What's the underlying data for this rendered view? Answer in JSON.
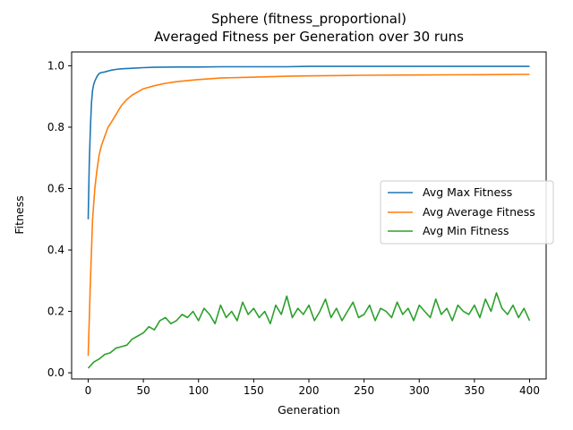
{
  "chart_data": {
    "type": "line",
    "title_line1": "Sphere (fitness_proportional)",
    "title_line2": "Averaged Fitness per Generation over 30 runs",
    "xlabel": "Generation",
    "ylabel": "Fitness",
    "xlim": [
      -15,
      415
    ],
    "ylim": [
      -0.02,
      1.045
    ],
    "xticks": [
      0,
      50,
      100,
      150,
      200,
      250,
      300,
      350,
      400
    ],
    "yticks": [
      0.0,
      0.2,
      0.4,
      0.6,
      0.8,
      1.0
    ],
    "ytick_labels": [
      "0.0",
      "0.2",
      "0.4",
      "0.6",
      "0.8",
      "1.0"
    ],
    "legend_position": "center-right",
    "series": [
      {
        "name": "Avg Max Fitness",
        "color": "#1f77b4",
        "x": [
          0,
          1,
          2,
          3,
          4,
          5,
          6,
          8,
          10,
          12,
          15,
          20,
          25,
          30,
          40,
          50,
          60,
          80,
          100,
          120,
          150,
          180,
          200,
          250,
          300,
          350,
          400
        ],
        "y": [
          0.5,
          0.68,
          0.8,
          0.88,
          0.92,
          0.94,
          0.95,
          0.965,
          0.975,
          0.978,
          0.98,
          0.985,
          0.988,
          0.99,
          0.992,
          0.994,
          0.995,
          0.996,
          0.996,
          0.997,
          0.997,
          0.997,
          0.998,
          0.998,
          0.998,
          0.998,
          0.998
        ]
      },
      {
        "name": "Avg Average Fitness",
        "color": "#ff7f0e",
        "x": [
          0,
          2,
          4,
          6,
          8,
          10,
          12,
          15,
          18,
          20,
          25,
          30,
          35,
          40,
          45,
          50,
          60,
          70,
          80,
          90,
          100,
          120,
          140,
          160,
          180,
          200,
          250,
          300,
          350,
          400
        ],
        "y": [
          0.055,
          0.3,
          0.5,
          0.6,
          0.66,
          0.71,
          0.74,
          0.77,
          0.8,
          0.81,
          0.84,
          0.87,
          0.89,
          0.905,
          0.915,
          0.925,
          0.935,
          0.943,
          0.948,
          0.952,
          0.955,
          0.96,
          0.962,
          0.964,
          0.966,
          0.967,
          0.969,
          0.97,
          0.971,
          0.972
        ]
      },
      {
        "name": "Avg Min Fitness",
        "color": "#2ca02c",
        "x": [
          0,
          5,
          10,
          15,
          20,
          25,
          30,
          35,
          40,
          45,
          50,
          55,
          60,
          65,
          70,
          75,
          80,
          85,
          90,
          95,
          100,
          105,
          110,
          115,
          120,
          125,
          130,
          135,
          140,
          145,
          150,
          155,
          160,
          165,
          170,
          175,
          180,
          185,
          190,
          195,
          200,
          205,
          210,
          215,
          220,
          225,
          230,
          235,
          240,
          245,
          250,
          255,
          260,
          265,
          270,
          275,
          280,
          285,
          290,
          295,
          300,
          305,
          310,
          315,
          320,
          325,
          330,
          335,
          340,
          345,
          350,
          355,
          360,
          365,
          370,
          375,
          380,
          385,
          390,
          395,
          400
        ],
        "y": [
          0.015,
          0.035,
          0.045,
          0.06,
          0.065,
          0.08,
          0.085,
          0.09,
          0.11,
          0.12,
          0.13,
          0.15,
          0.14,
          0.17,
          0.18,
          0.16,
          0.17,
          0.19,
          0.18,
          0.2,
          0.17,
          0.21,
          0.19,
          0.16,
          0.22,
          0.18,
          0.2,
          0.17,
          0.23,
          0.19,
          0.21,
          0.18,
          0.2,
          0.16,
          0.22,
          0.19,
          0.25,
          0.18,
          0.21,
          0.19,
          0.22,
          0.17,
          0.2,
          0.24,
          0.18,
          0.21,
          0.17,
          0.2,
          0.23,
          0.18,
          0.19,
          0.22,
          0.17,
          0.21,
          0.2,
          0.18,
          0.23,
          0.19,
          0.21,
          0.17,
          0.22,
          0.2,
          0.18,
          0.24,
          0.19,
          0.21,
          0.17,
          0.22,
          0.2,
          0.19,
          0.22,
          0.18,
          0.24,
          0.2,
          0.26,
          0.21,
          0.19,
          0.22,
          0.18,
          0.21,
          0.17
        ]
      }
    ]
  }
}
